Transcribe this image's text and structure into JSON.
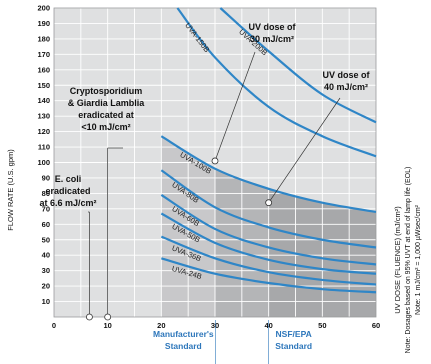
{
  "chart_data": {
    "type": "line",
    "xlabel": "UV DOSE (FLUENCE) (mJ/cm²)",
    "ylabel": "FLOW RATE (U.S. gpm)",
    "xlim": [
      0,
      60
    ],
    "ylim": [
      0,
      200
    ],
    "x_ticks": [
      "0",
      "10",
      "20",
      "30",
      "40",
      "50",
      "60"
    ],
    "y_ticks": [
      "10",
      "20",
      "30",
      "40",
      "50",
      "60",
      "70",
      "80",
      "90",
      "100",
      "110",
      "120",
      "130",
      "140",
      "150",
      "160",
      "170",
      "180",
      "190",
      "200"
    ],
    "grid": true,
    "series": [
      {
        "name": "UVA-150B",
        "points": [
          [
            23,
            200
          ],
          [
            30,
            168
          ],
          [
            40,
            136
          ],
          [
            50,
            117
          ],
          [
            60,
            104
          ]
        ]
      },
      {
        "name": "UVA-200B",
        "points": [
          [
            31,
            200
          ],
          [
            40,
            172
          ],
          [
            50,
            144
          ],
          [
            60,
            126
          ]
        ]
      },
      {
        "name": "UVA-100B",
        "points": [
          [
            20,
            117
          ],
          [
            30,
            96
          ],
          [
            40,
            83
          ],
          [
            50,
            74
          ],
          [
            60,
            68
          ]
        ]
      },
      {
        "name": "UVA-80B",
        "points": [
          [
            20,
            95
          ],
          [
            30,
            71
          ],
          [
            40,
            58
          ],
          [
            50,
            50
          ],
          [
            60,
            45
          ]
        ]
      },
      {
        "name": "UVA-60B",
        "points": [
          [
            20,
            79
          ],
          [
            30,
            57
          ],
          [
            40,
            45
          ],
          [
            50,
            38
          ],
          [
            60,
            34
          ]
        ]
      },
      {
        "name": "UVA-50B",
        "points": [
          [
            20,
            67
          ],
          [
            30,
            48
          ],
          [
            40,
            37
          ],
          [
            50,
            31
          ],
          [
            60,
            28
          ]
        ]
      },
      {
        "name": "UVA-36B",
        "points": [
          [
            20,
            52
          ],
          [
            30,
            38
          ],
          [
            40,
            29
          ],
          [
            50,
            24
          ],
          [
            60,
            21
          ]
        ]
      },
      {
        "name": "UVA-24B",
        "points": [
          [
            20,
            38
          ],
          [
            30,
            28
          ],
          [
            40,
            22
          ],
          [
            50,
            18
          ],
          [
            60,
            16
          ]
        ]
      }
    ],
    "shaded_regions": [
      {
        "x_from": 20,
        "x_to": 30,
        "shade": "light"
      },
      {
        "x_from": 30,
        "x_to": 40,
        "shade": "medium"
      },
      {
        "x_from": 40,
        "x_to": 60,
        "shade": "dark"
      }
    ],
    "annotations": [
      {
        "name": "dose-30",
        "lines": [
          "UV dose of",
          "30 mJ/cm²"
        ],
        "marker": [
          30,
          101
        ]
      },
      {
        "name": "dose-40",
        "lines": [
          "UV dose of",
          "40 mJ/cm²"
        ],
        "marker": [
          40,
          74
        ]
      },
      {
        "name": "crypto",
        "lines": [
          "Cryptosporidium",
          "& Giardia Lamblia",
          "eradicated at",
          "<10 mJ/cm²"
        ],
        "marker": [
          10,
          0
        ]
      },
      {
        "name": "ecoli",
        "lines": [
          "E. coli",
          "eradicated",
          "at 6.6 mJ/cm²"
        ],
        "marker": [
          6.6,
          0
        ]
      }
    ],
    "notes": [
      "Note: Dosages based on 95% UVT at end of lamp life (EOL)",
      "Note: 1 mJ/cm² = 1,000 µWsec/cm²"
    ],
    "standards": [
      {
        "x": 20,
        "lines": [
          "Manufacturer's",
          "Standard"
        ]
      },
      {
        "x": 40,
        "lines": [
          "NSF/EPA",
          "Standard"
        ]
      }
    ]
  },
  "colors": {
    "curve": "#2f86c7",
    "background": "#dfe0e1",
    "shade_light": "#c8c8ca",
    "shade_medium": "#b4b5b7",
    "shade_dark": "#a7a8aa",
    "grid": "#ffffff",
    "standard_label": "#2e77bb",
    "text": "#111111"
  }
}
